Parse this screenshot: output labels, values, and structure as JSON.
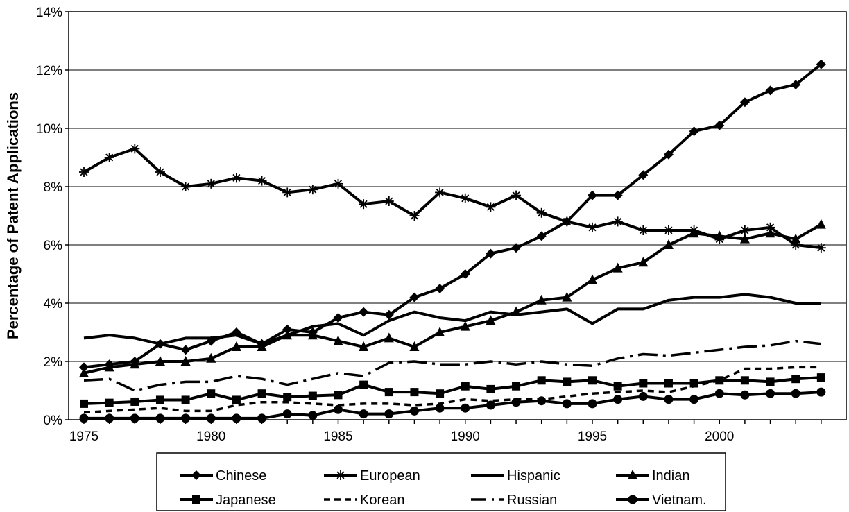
{
  "chart_data": {
    "type": "line",
    "title": "",
    "xlabel": "",
    "ylabel": "Percentage of Patent Applications",
    "x": [
      1975,
      1976,
      1977,
      1978,
      1979,
      1980,
      1981,
      1982,
      1983,
      1984,
      1985,
      1986,
      1987,
      1988,
      1989,
      1990,
      1991,
      1992,
      1993,
      1994,
      1995,
      1996,
      1997,
      1998,
      1999,
      2000,
      2001,
      2002,
      2003,
      2004
    ],
    "xlim": [
      1975,
      2004
    ],
    "xticks": [
      1975,
      1980,
      1985,
      1990,
      1995,
      2000
    ],
    "xtick_labels": [
      "1975",
      "1980",
      "1985",
      "1990",
      "1995",
      "2000"
    ],
    "ylim": [
      0,
      14
    ],
    "yticks": [
      0,
      2,
      4,
      6,
      8,
      10,
      12,
      14
    ],
    "ytick_labels": [
      "0%",
      "2%",
      "4%",
      "6%",
      "8%",
      "10%",
      "12%",
      "14%"
    ],
    "grid": "horizontal",
    "legend_position": "bottom",
    "series": [
      {
        "name": "Chinese",
        "marker": "diamond",
        "dash": "solid",
        "values": [
          1.8,
          1.9,
          2.0,
          2.6,
          2.4,
          2.7,
          3.0,
          2.6,
          3.1,
          3.0,
          3.5,
          3.7,
          3.6,
          4.2,
          4.5,
          5.0,
          5.7,
          5.9,
          6.3,
          6.8,
          7.7,
          7.7,
          8.4,
          9.1,
          9.9,
          10.1,
          10.9,
          11.3,
          11.5,
          12.2
        ]
      },
      {
        "name": "European",
        "marker": "asterisk",
        "dash": "solid",
        "values": [
          8.5,
          9.0,
          9.3,
          8.5,
          8.0,
          8.1,
          8.3,
          8.2,
          7.8,
          7.9,
          8.1,
          7.4,
          7.5,
          7.0,
          7.8,
          7.6,
          7.3,
          7.7,
          7.1,
          6.8,
          6.6,
          6.8,
          6.5,
          6.5,
          6.5,
          6.2,
          6.5,
          6.6,
          6.0,
          5.9
        ]
      },
      {
        "name": "Hispanic",
        "marker": "none",
        "dash": "solid",
        "values": [
          2.8,
          2.9,
          2.8,
          2.6,
          2.8,
          2.8,
          2.9,
          2.6,
          2.9,
          3.2,
          3.3,
          2.9,
          3.4,
          3.7,
          3.5,
          3.4,
          3.7,
          3.6,
          3.7,
          3.8,
          3.3,
          3.8,
          3.8,
          4.1,
          4.2,
          4.2,
          4.3,
          4.2,
          4.0,
          4.0
        ]
      },
      {
        "name": "Indian",
        "marker": "triangle",
        "dash": "solid",
        "values": [
          1.6,
          1.8,
          1.9,
          2.0,
          2.0,
          2.1,
          2.5,
          2.5,
          2.9,
          2.9,
          2.7,
          2.5,
          2.8,
          2.5,
          3.0,
          3.2,
          3.4,
          3.7,
          4.1,
          4.2,
          4.8,
          5.2,
          5.4,
          6.0,
          6.4,
          6.3,
          6.2,
          6.4,
          6.2,
          6.7
        ]
      },
      {
        "name": "Japanese",
        "marker": "square",
        "dash": "solid",
        "values": [
          0.55,
          0.58,
          0.62,
          0.68,
          0.68,
          0.9,
          0.68,
          0.9,
          0.78,
          0.82,
          0.85,
          1.2,
          0.95,
          0.95,
          0.9,
          1.15,
          1.05,
          1.15,
          1.35,
          1.3,
          1.35,
          1.15,
          1.25,
          1.25,
          1.25,
          1.35,
          1.35,
          1.3,
          1.4,
          1.45
        ]
      },
      {
        "name": "Korean",
        "marker": "none",
        "dash": "short",
        "values": [
          0.25,
          0.3,
          0.35,
          0.4,
          0.3,
          0.3,
          0.5,
          0.6,
          0.6,
          0.55,
          0.5,
          0.55,
          0.55,
          0.5,
          0.55,
          0.7,
          0.65,
          0.7,
          0.7,
          0.8,
          0.9,
          0.95,
          1.0,
          0.95,
          1.15,
          1.35,
          1.75,
          1.75,
          1.8,
          1.8
        ]
      },
      {
        "name": "Russian",
        "marker": "none",
        "dash": "long-short",
        "values": [
          1.35,
          1.4,
          1.0,
          1.2,
          1.3,
          1.3,
          1.5,
          1.4,
          1.2,
          1.4,
          1.6,
          1.5,
          1.95,
          2.0,
          1.9,
          1.9,
          2.0,
          1.9,
          2.0,
          1.9,
          1.85,
          2.1,
          2.25,
          2.2,
          2.3,
          2.4,
          2.5,
          2.55,
          2.7,
          2.6
        ]
      },
      {
        "name": "Vietnam.",
        "marker": "circle",
        "dash": "solid",
        "values": [
          0.05,
          0.05,
          0.05,
          0.05,
          0.05,
          0.05,
          0.05,
          0.05,
          0.2,
          0.15,
          0.35,
          0.2,
          0.2,
          0.3,
          0.4,
          0.4,
          0.5,
          0.6,
          0.65,
          0.55,
          0.55,
          0.7,
          0.8,
          0.7,
          0.7,
          0.9,
          0.85,
          0.9,
          0.9,
          0.95
        ]
      }
    ]
  }
}
